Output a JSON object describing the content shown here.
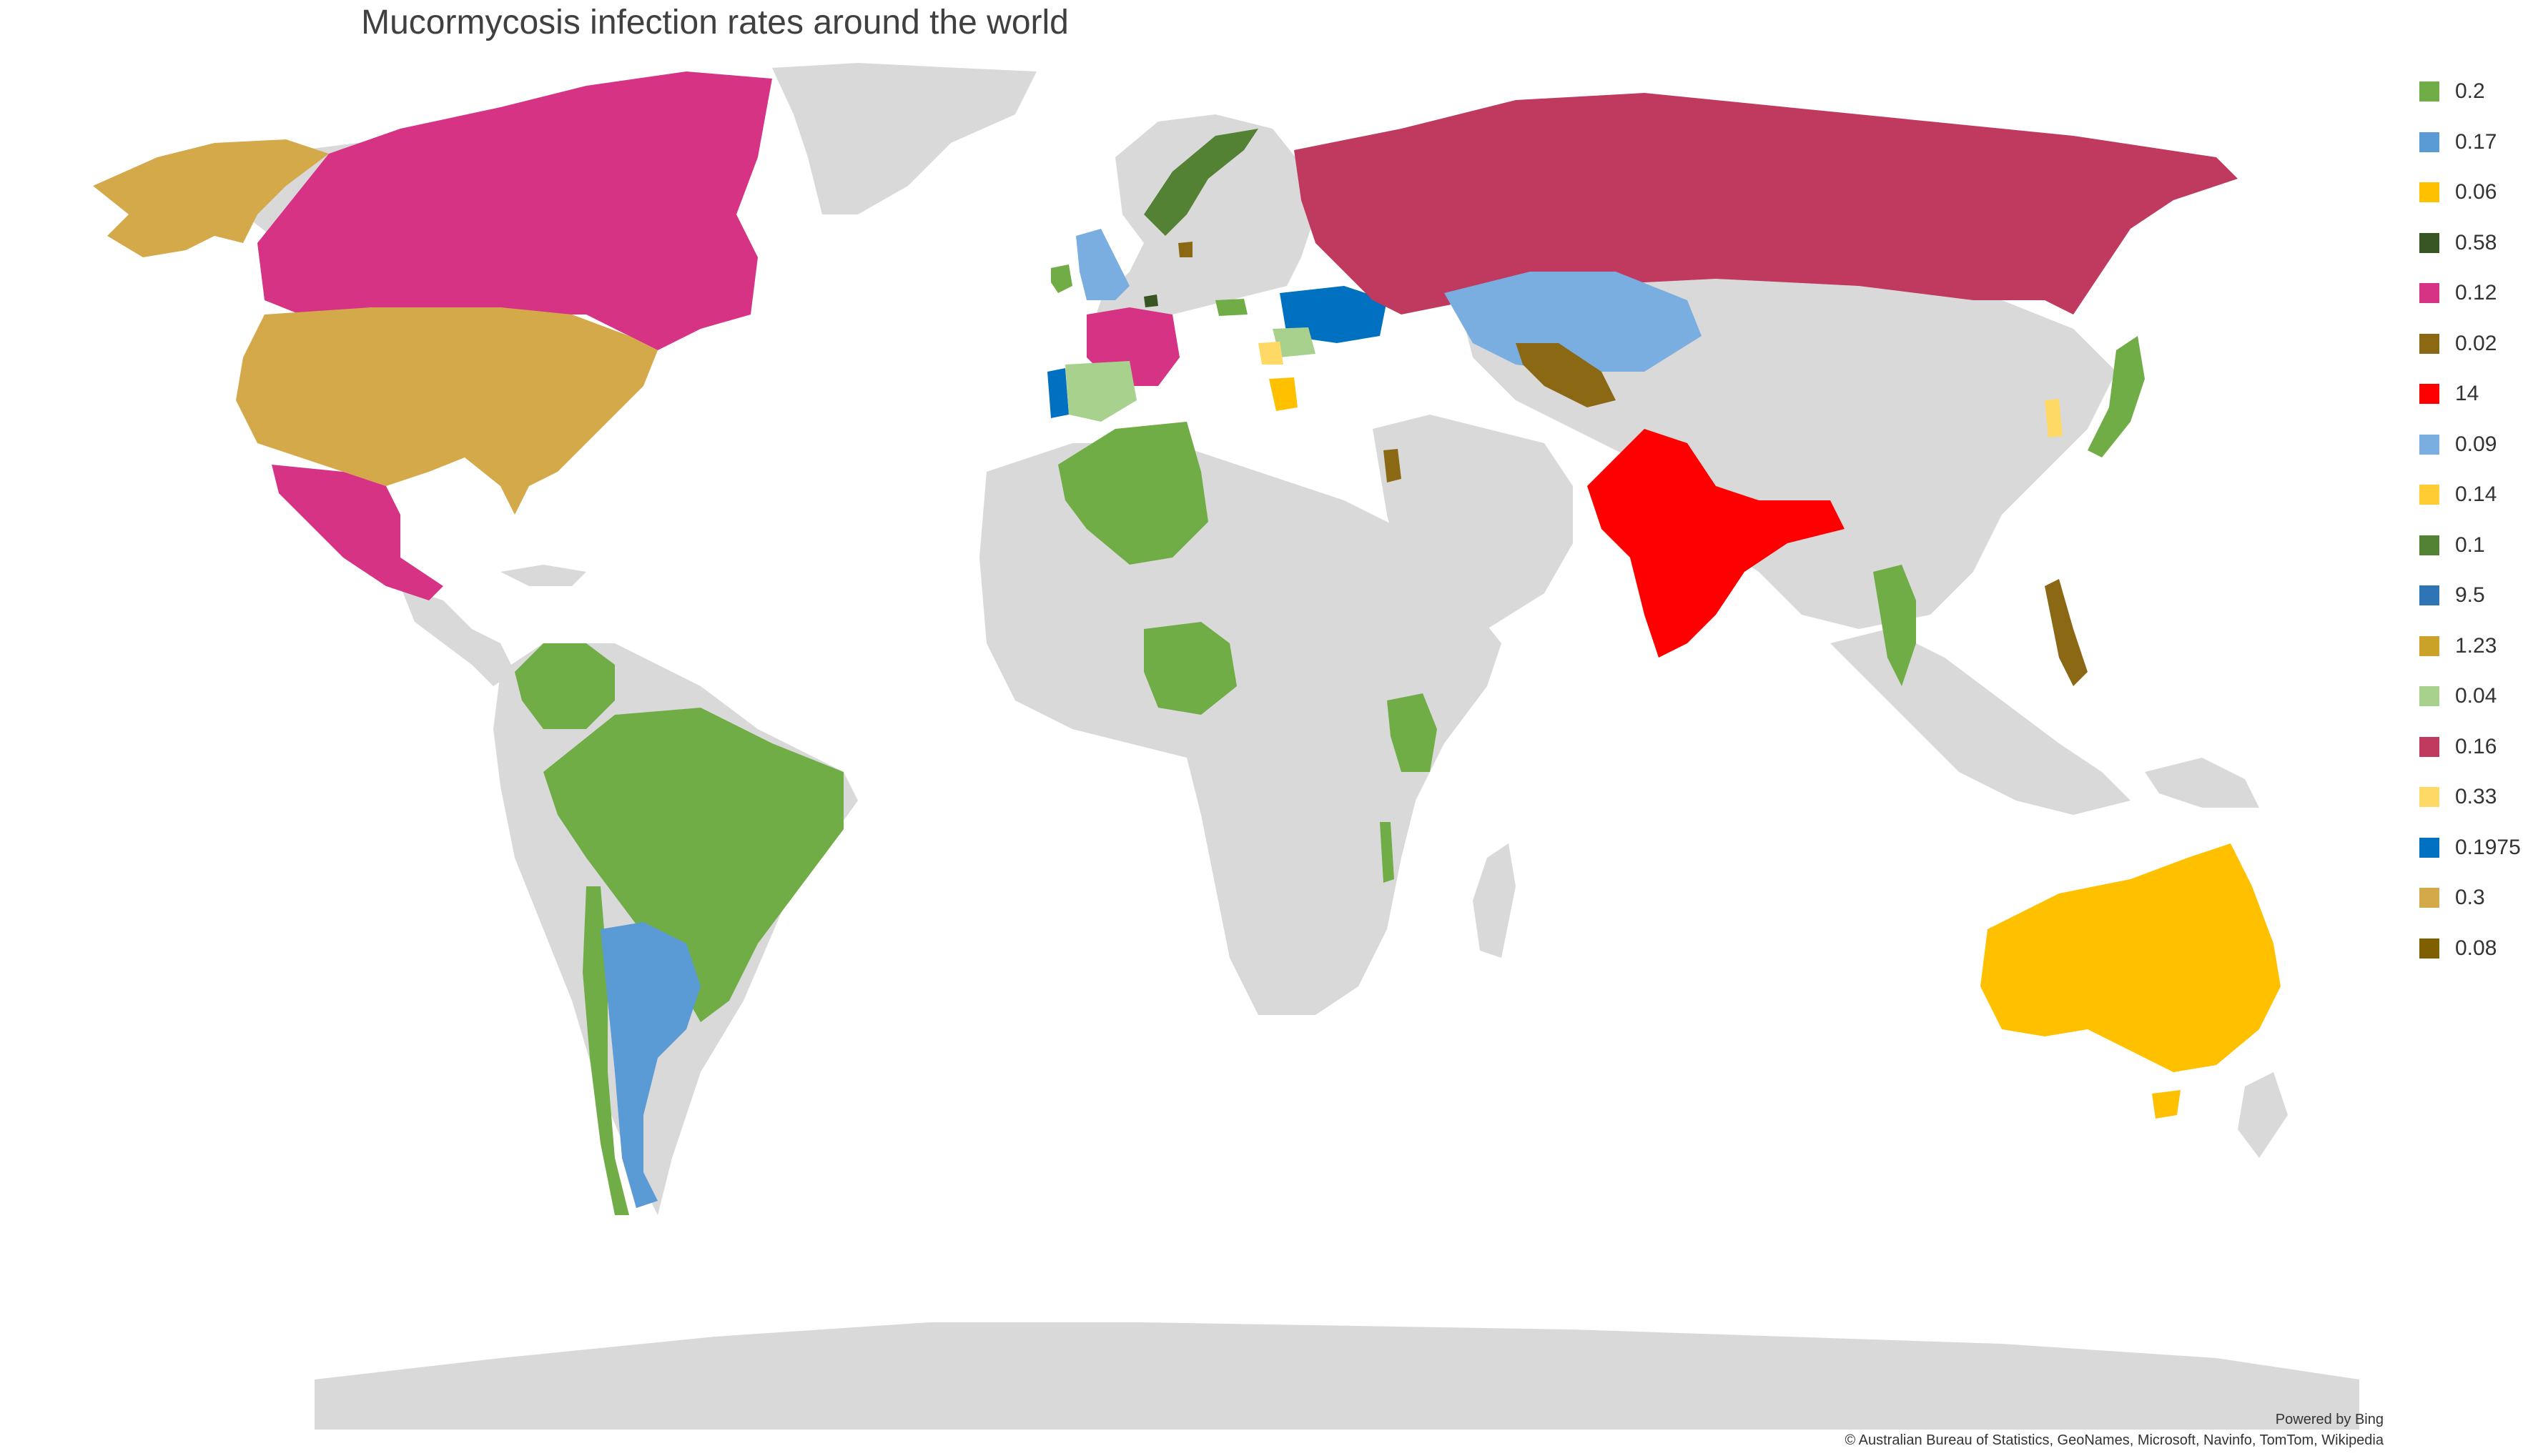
{
  "title": "Mucormycosis infection rates around the world",
  "legend": [
    {
      "label": "0.2",
      "color": "#70ad47"
    },
    {
      "label": "0.17",
      "color": "#5b9bd5"
    },
    {
      "label": "0.06",
      "color": "#ffc000"
    },
    {
      "label": "0.58",
      "color": "#375623"
    },
    {
      "label": "0.12",
      "color": "#d63384"
    },
    {
      "label": "0.02",
      "color": "#8b6914"
    },
    {
      "label": "14",
      "color": "#ff0000"
    },
    {
      "label": "0.09",
      "color": "#7aaee0"
    },
    {
      "label": "0.14",
      "color": "#ffcc33"
    },
    {
      "label": "0.1",
      "color": "#548235"
    },
    {
      "label": "9.5",
      "color": "#2e75b6"
    },
    {
      "label": "1.23",
      "color": "#c9a227"
    },
    {
      "label": "0.04",
      "color": "#a9d18e"
    },
    {
      "label": "0.16",
      "color": "#c0395f"
    },
    {
      "label": "0.33",
      "color": "#ffd966"
    },
    {
      "label": "0.1975",
      "color": "#0070c0"
    },
    {
      "label": "0.3",
      "color": "#d4a94a"
    },
    {
      "label": "0.08",
      "color": "#7f6000"
    }
  ],
  "base_color": "#d9d9d9",
  "powered_by": "Powered by Bing",
  "attribution": "© Australian Bureau of Statistics, GeoNames, Microsoft, Navinfo, TomTom, Wikipedia"
}
